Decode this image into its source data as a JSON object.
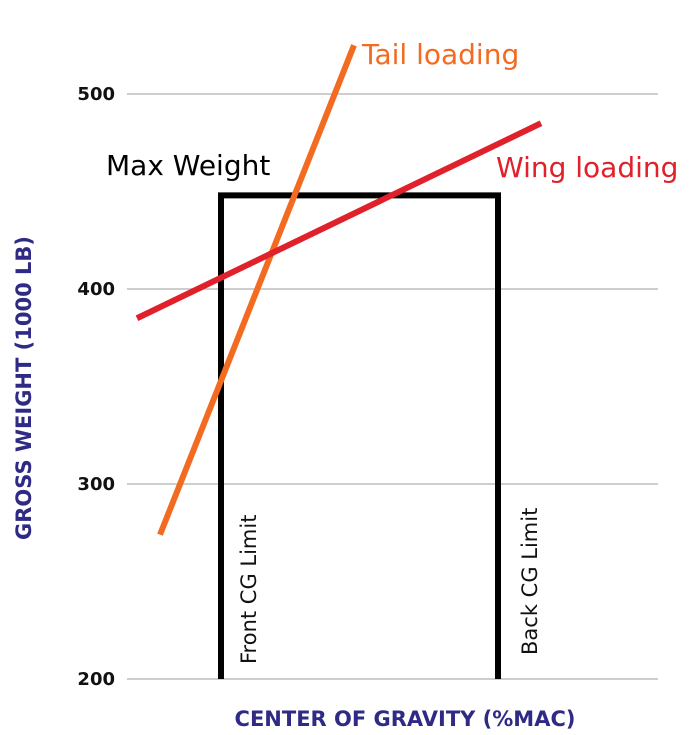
{
  "chart_data": {
    "type": "line",
    "title": "",
    "xlabel": "CENTER OF GRAVITY (%MAC)",
    "ylabel": "GROSS WEIGHT (1000 LB)",
    "yticks": [
      200,
      300,
      400,
      500
    ],
    "ylim": [
      200,
      520
    ],
    "grid": true,
    "colors": {
      "axis_title": "#2e2a86",
      "grid": "#bdbdbd",
      "envelope": "#000000",
      "tail": "#f26b21",
      "wing": "#e0202b"
    },
    "envelope": {
      "front_cg_label": "Front CG Limit",
      "back_cg_label": "Back CG Limit",
      "max_weight": 448,
      "max_weight_label": "Max Weight"
    },
    "series": [
      {
        "name": "Tail loading",
        "start_y": 274,
        "end_y": 525
      },
      {
        "name": "Wing loading",
        "start_y": 385,
        "end_y": 485
      }
    ]
  }
}
